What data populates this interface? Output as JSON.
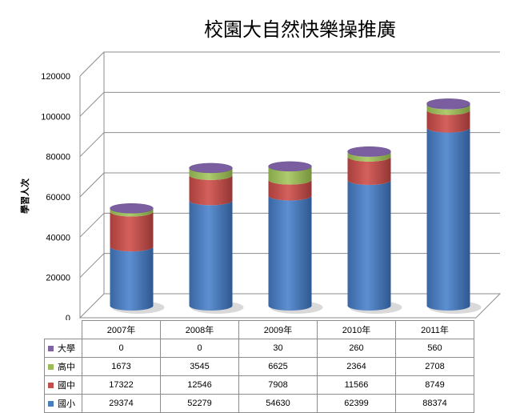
{
  "chart_data": {
    "type": "bar",
    "stacked": true,
    "style": "3d-cylinder",
    "title": "校園大自然快樂操推廣",
    "xlabel": "",
    "ylabel": "學習人次",
    "ylim": [
      0,
      120000
    ],
    "yticks": [
      0,
      20000,
      40000,
      60000,
      80000,
      100000,
      120000
    ],
    "ytick_labels": [
      "0",
      "20000",
      "40000",
      "60000",
      "80000",
      "100000",
      "120000"
    ],
    "grid": true,
    "legend": "data-table",
    "categories": [
      "2007年",
      "2008年",
      "2009年",
      "2010年",
      "2011年"
    ],
    "series": [
      {
        "name": "國小",
        "color": "#4a7ebb",
        "values": [
          29374,
          52279,
          54630,
          62399,
          88374
        ]
      },
      {
        "name": "國中",
        "color": "#c0504d",
        "values": [
          17322,
          12546,
          7908,
          11566,
          8749
        ]
      },
      {
        "name": "高中",
        "color": "#9bbb59",
        "values": [
          1673,
          3545,
          6625,
          2364,
          2708
        ]
      },
      {
        "name": "大學",
        "color": "#8064a2",
        "values": [
          0,
          0,
          30,
          260,
          560
        ]
      }
    ],
    "table_rows": [
      {
        "name": "大學",
        "color": "#8064a2",
        "values": [
          "0",
          "0",
          "30",
          "260",
          "560"
        ]
      },
      {
        "name": "高中",
        "color": "#9bbb59",
        "values": [
          "1673",
          "3545",
          "6625",
          "2364",
          "2708"
        ]
      },
      {
        "name": "國中",
        "color": "#c0504d",
        "values": [
          "17322",
          "12546",
          "7908",
          "11566",
          "8749"
        ]
      },
      {
        "name": "國小",
        "color": "#4a7ebb",
        "values": [
          "29374",
          "52279",
          "54630",
          "62399",
          "88374"
        ]
      }
    ]
  }
}
